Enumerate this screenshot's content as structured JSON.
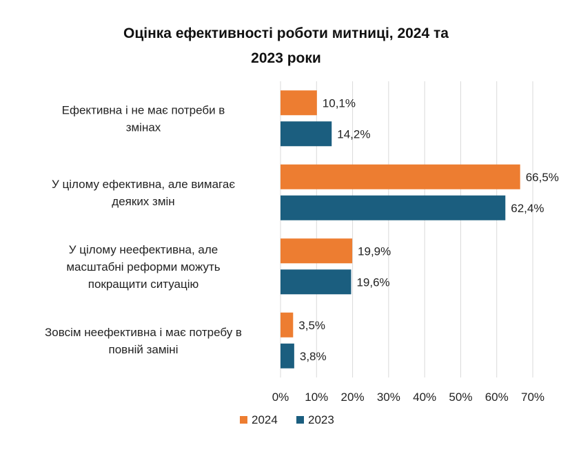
{
  "chart_data": {
    "type": "bar",
    "orientation": "horizontal",
    "title_lines": [
      "Оцінка ефективності роботи митниці, 2024 та",
      "2023 роки"
    ],
    "categories": [
      "Ефективна і не має потреби в змінах",
      "У цілому ефективна, але вимагає деяких змін",
      "У цілому неефективна, але масштабні реформи можуть покращити ситуацію",
      "Зовсім неефективна і має потребу в повній заміні"
    ],
    "category_lines": [
      [
        "Ефективна і не має потреби в",
        "змінах"
      ],
      [
        "У цілому ефективна, але вимагає",
        "деяких змін"
      ],
      [
        "У цілому неефективна, але",
        "масштабні реформи можуть",
        "покращити ситуацію"
      ],
      [
        "Зовсім неефективна і має потребу в",
        "повній заміні"
      ]
    ],
    "series": [
      {
        "name": "2024",
        "color": "#ED7D31",
        "values": [
          10.1,
          66.5,
          19.9,
          3.5
        ],
        "labels": [
          "10,1%",
          "66,5%",
          "19,9%",
          "3,5%"
        ]
      },
      {
        "name": "2023",
        "color": "#1B5E7F",
        "values": [
          14.2,
          62.4,
          19.6,
          3.8
        ],
        "labels": [
          "14,2%",
          "62,4%",
          "19,6%",
          "3,8%"
        ]
      }
    ],
    "xlim": [
      0,
      70
    ],
    "xticks": [
      0,
      10,
      20,
      30,
      40,
      50,
      60,
      70
    ],
    "xtick_labels": [
      "0%",
      "10%",
      "20%",
      "30%",
      "40%",
      "50%",
      "60%",
      "70%"
    ],
    "grid": true,
    "legend_position": "bottom"
  }
}
